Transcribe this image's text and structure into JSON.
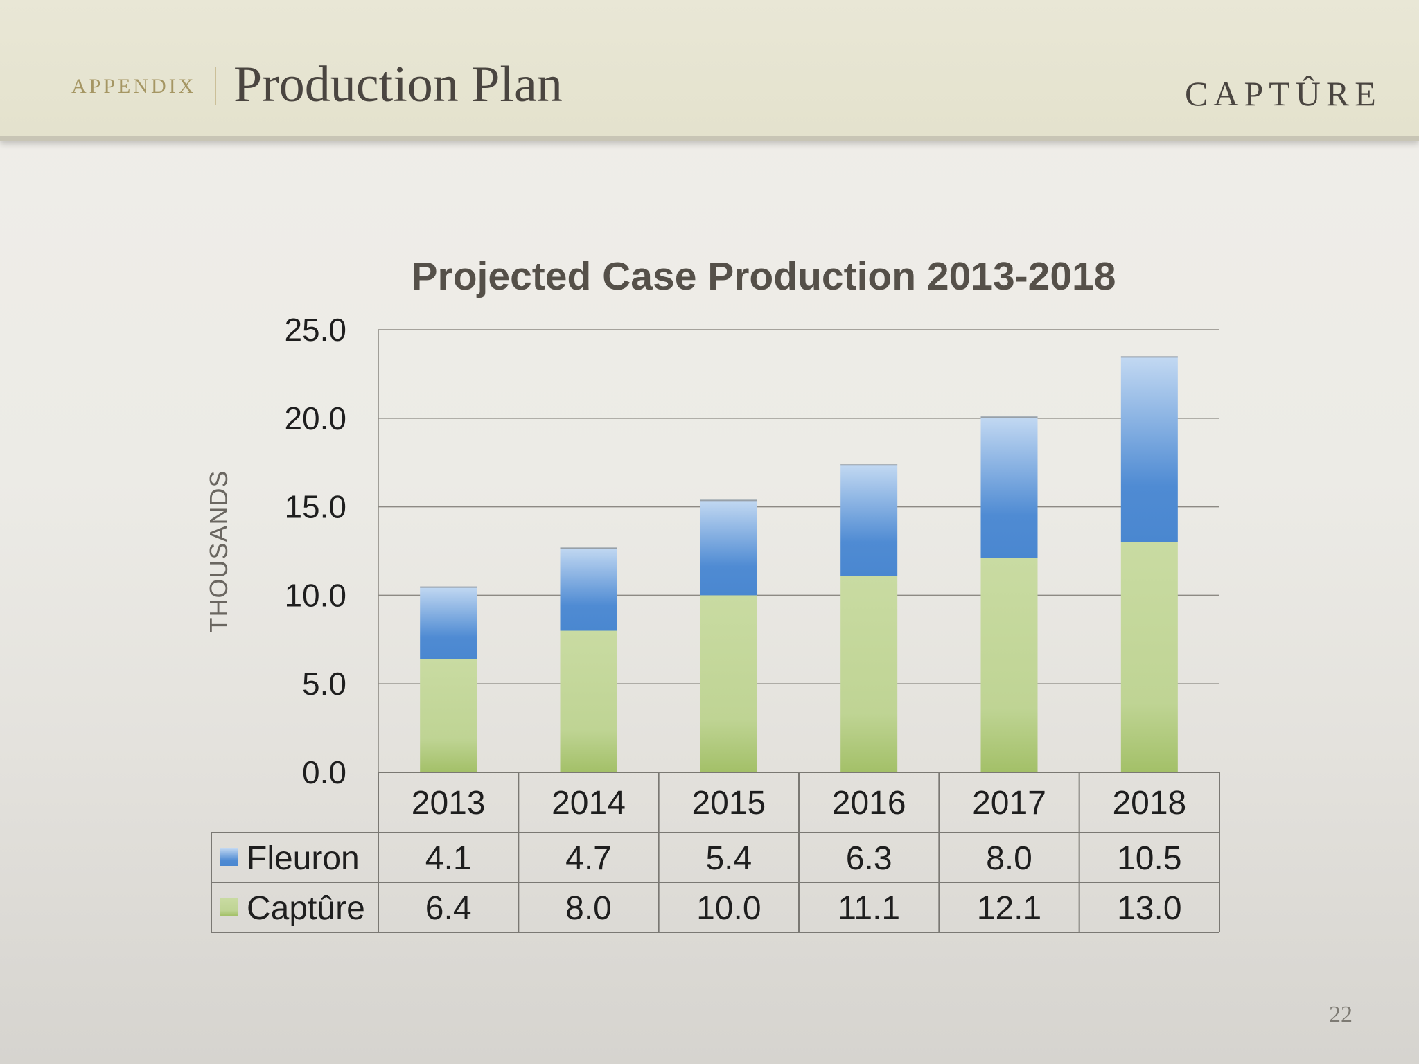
{
  "header": {
    "section": "APPENDIX",
    "title": "Production Plan",
    "brand": "CAPTÛRE"
  },
  "page_number": "22",
  "colors": {
    "fleuron": "#4f8bd3",
    "capture": "#a5c26a",
    "text_dark": "#4a4540"
  },
  "chart_data": {
    "type": "bar",
    "stacked": true,
    "title": "Projected Case Production 2013-2018",
    "ylabel": "THOUSANDS",
    "xlabel": "",
    "ylim": [
      0,
      25
    ],
    "yticks": [
      "0.0",
      "5.0",
      "10.0",
      "15.0",
      "20.0",
      "25.0"
    ],
    "categories": [
      "2013",
      "2014",
      "2015",
      "2016",
      "2017",
      "2018"
    ],
    "series": [
      {
        "name": "Captûre",
        "values": [
          6.4,
          8.0,
          10.0,
          11.1,
          12.1,
          13.0
        ],
        "labels": [
          "6.4",
          "8.0",
          "10.0",
          "11.1",
          "12.1",
          "13.0"
        ]
      },
      {
        "name": "Fleuron",
        "values": [
          4.1,
          4.7,
          5.4,
          6.3,
          8.0,
          10.5
        ],
        "labels": [
          "4.1",
          "4.7",
          "5.4",
          "6.3",
          "8.0",
          "10.5"
        ]
      }
    ],
    "data_table": {
      "rows": [
        "Fleuron",
        "Captûre"
      ]
    },
    "grid": true
  }
}
